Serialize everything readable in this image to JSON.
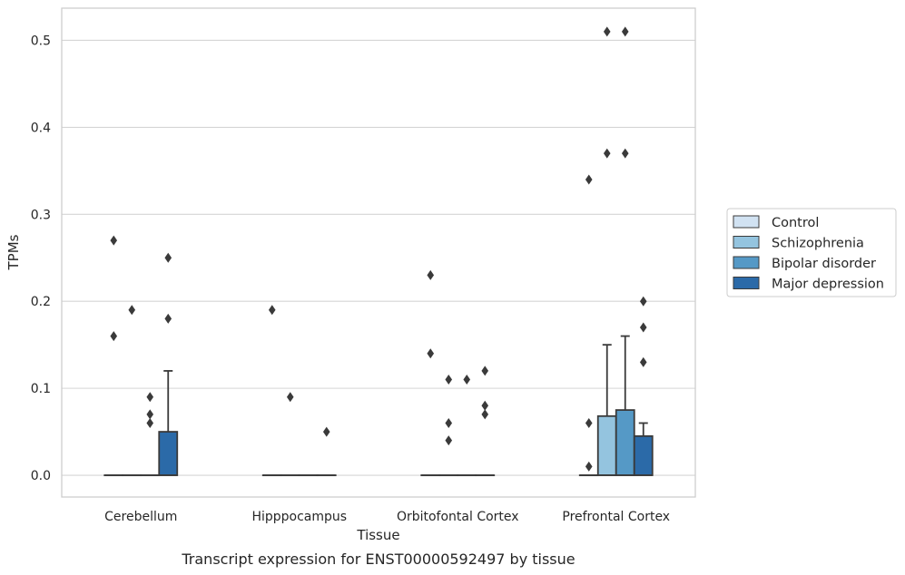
{
  "caption": "Transcript expression for ENST00000592497 by tissue",
  "chart_data": {
    "type": "box",
    "title": "",
    "xlabel": "Tissue",
    "ylabel": "TPMs",
    "ylim": [
      -0.025,
      0.537
    ],
    "yticks": [
      0.0,
      0.1,
      0.2,
      0.3,
      0.4,
      0.5
    ],
    "ytick_labels": [
      "0.0",
      "0.1",
      "0.2",
      "0.3",
      "0.4",
      "0.5"
    ],
    "grid": true,
    "legend_position": "right",
    "categories": [
      "Cerebellum",
      "Hipppocampus",
      "Orbitofontal Cortex",
      "Prefrontal Cortex"
    ],
    "series": [
      {
        "name": "Control",
        "color": "#d1e2f2",
        "boxes": [
          {
            "q1": 0,
            "median": 0,
            "q3": 0,
            "whisker_low": 0,
            "whisker_high": 0,
            "outliers": [
              0.27,
              0.16
            ]
          },
          {
            "q1": 0,
            "median": 0,
            "q3": 0,
            "whisker_low": 0,
            "whisker_high": 0,
            "outliers": [
              0.19
            ]
          },
          {
            "q1": 0,
            "median": 0,
            "q3": 0,
            "whisker_low": 0,
            "whisker_high": 0,
            "outliers": [
              0.23,
              0.14
            ]
          },
          {
            "q1": 0,
            "median": 0,
            "q3": 0,
            "whisker_low": 0,
            "whisker_high": 0,
            "outliers": [
              0.34,
              0.06,
              0.01
            ]
          }
        ]
      },
      {
        "name": "Schizophrenia",
        "color": "#94c4df",
        "boxes": [
          {
            "q1": 0,
            "median": 0,
            "q3": 0,
            "whisker_low": 0,
            "whisker_high": 0,
            "outliers": [
              0.19
            ]
          },
          {
            "q1": 0,
            "median": 0,
            "q3": 0,
            "whisker_low": 0,
            "whisker_high": 0,
            "outliers": [
              0.09
            ]
          },
          {
            "q1": 0,
            "median": 0,
            "q3": 0,
            "whisker_low": 0,
            "whisker_high": 0,
            "outliers": [
              0.11,
              0.06,
              0.04
            ]
          },
          {
            "q1": 0,
            "median": 0,
            "q3": 0.068,
            "whisker_low": 0,
            "whisker_high": 0.15,
            "outliers": [
              0.51,
              0.37
            ]
          }
        ]
      },
      {
        "name": "Bipolar disorder",
        "color": "#5599c6",
        "boxes": [
          {
            "q1": 0,
            "median": 0,
            "q3": 0,
            "whisker_low": 0,
            "whisker_high": 0,
            "outliers": [
              0.09,
              0.07,
              0.06
            ]
          },
          {
            "q1": 0,
            "median": 0,
            "q3": 0,
            "whisker_low": 0,
            "whisker_high": 0,
            "outliers": []
          },
          {
            "q1": 0,
            "median": 0,
            "q3": 0,
            "whisker_low": 0,
            "whisker_high": 0,
            "outliers": [
              0.11
            ]
          },
          {
            "q1": 0,
            "median": 0,
            "q3": 0.075,
            "whisker_low": 0,
            "whisker_high": 0.16,
            "outliers": [
              0.51,
              0.37
            ]
          }
        ]
      },
      {
        "name": "Major depression",
        "color": "#2b6aa8",
        "boxes": [
          {
            "q1": 0,
            "median": 0,
            "q3": 0.05,
            "whisker_low": 0,
            "whisker_high": 0.12,
            "outliers": [
              0.25,
              0.18
            ]
          },
          {
            "q1": 0,
            "median": 0,
            "q3": 0,
            "whisker_low": 0,
            "whisker_high": 0,
            "outliers": [
              0.05
            ]
          },
          {
            "q1": 0,
            "median": 0,
            "q3": 0,
            "whisker_low": 0,
            "whisker_high": 0,
            "outliers": [
              0.12,
              0.08,
              0.07
            ]
          },
          {
            "q1": 0,
            "median": 0,
            "q3": 0.045,
            "whisker_low": 0,
            "whisker_high": 0.06,
            "outliers": [
              0.2,
              0.17,
              0.13
            ]
          }
        ]
      }
    ]
  }
}
